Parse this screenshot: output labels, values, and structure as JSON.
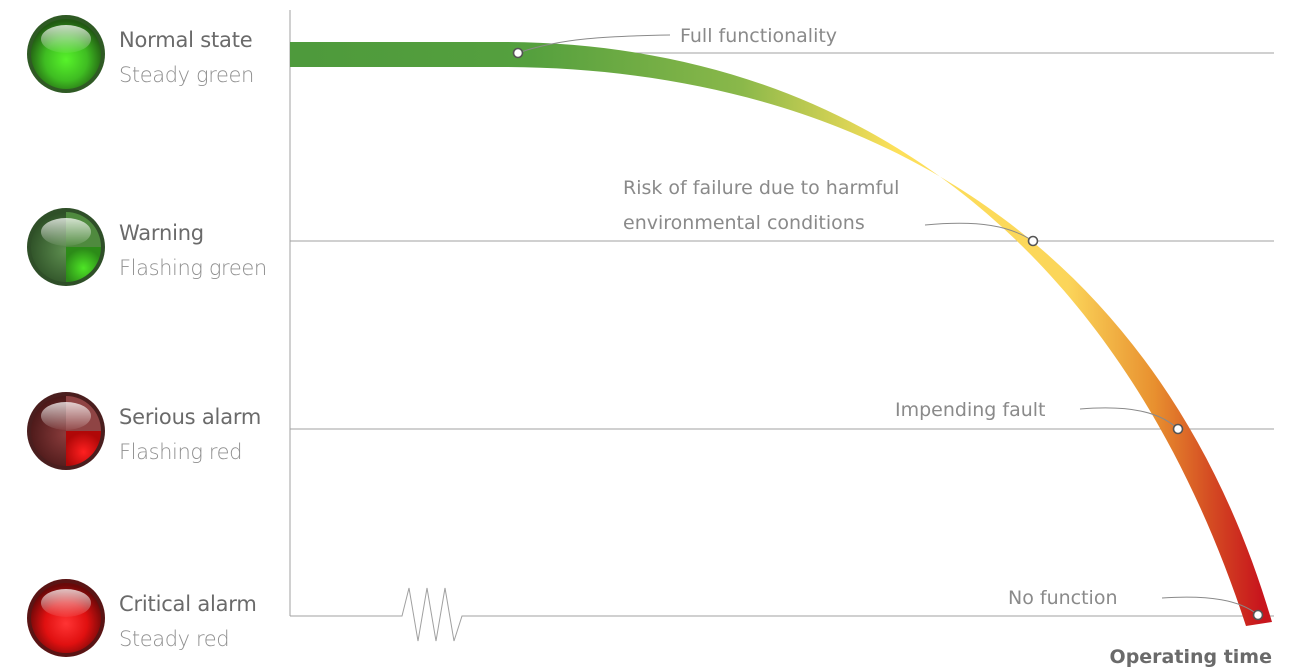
{
  "states": [
    {
      "title": "Normal state",
      "subtitle": "Steady green",
      "led_type": "steady-green"
    },
    {
      "title": "Warning",
      "subtitle": "Flashing green",
      "led_type": "flashing-green"
    },
    {
      "title": "Serious alarm",
      "subtitle": "Flashing red",
      "led_type": "flashing-red"
    },
    {
      "title": "Critical alarm",
      "subtitle": "Steady red",
      "led_type": "steady-red"
    }
  ],
  "annotations": {
    "full_functionality": "Full functionality",
    "risk_line1": "Risk of failure due to harmful",
    "risk_line2": "environmental conditions",
    "impending_fault": "Impending fault",
    "no_function": "No function"
  },
  "x_axis_label": "Operating time",
  "colors": {
    "green": "#4e9a3c",
    "yellow": "#fde05a",
    "orange": "#e8902f",
    "red": "#c8161d",
    "line": "#9a9a9a",
    "text": "#6a6a6a"
  }
}
